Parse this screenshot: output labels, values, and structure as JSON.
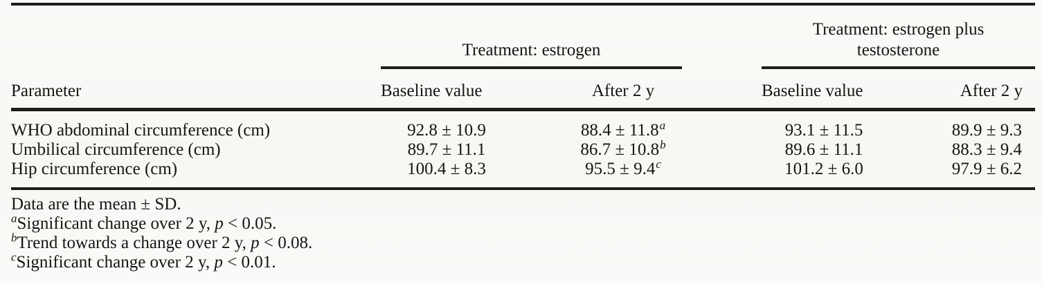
{
  "table": {
    "span_headers": {
      "estrogen": "Treatment: estrogen",
      "estrogen_testosterone": "Treatment: estrogen plus testosterone"
    },
    "columns": {
      "parameter": "Parameter",
      "estrogen_baseline": "Baseline value",
      "estrogen_after": "After 2 y",
      "combo_baseline": "Baseline value",
      "combo_after": "After 2 y"
    },
    "rows": [
      {
        "parameter": "WHO abdominal circumference (cm)",
        "estrogen": {
          "baseline": "92.8 ± 10.9",
          "after": "88.4 ± 11.8",
          "after_note": "a"
        },
        "estrogen_testosterone": {
          "baseline": "93.1 ± 11.5",
          "after": "89.9 ± 9.3",
          "after_note": ""
        }
      },
      {
        "parameter": "Umbilical circumference (cm)",
        "estrogen": {
          "baseline": "89.7 ± 11.1",
          "after": "86.7 ± 10.8",
          "after_note": "b"
        },
        "estrogen_testosterone": {
          "baseline": "89.6 ± 11.1",
          "after": "88.3 ± 9.4",
          "after_note": ""
        }
      },
      {
        "parameter": "Hip circumference (cm)",
        "estrogen": {
          "baseline": "100.4 ± 8.3",
          "after": "95.5 ± 9.4",
          "after_note": "c"
        },
        "estrogen_testosterone": {
          "baseline": "101.2 ± 6.0",
          "after": "97.9 ± 6.2",
          "after_note": ""
        }
      }
    ],
    "footnotes": [
      {
        "marker": "",
        "text": "Data are the mean ± SD.",
        "p_var": "",
        "condition": ""
      },
      {
        "marker": "a",
        "text": "Significant change over 2 y, ",
        "p_var": "p",
        "condition": " < 0.05."
      },
      {
        "marker": "b",
        "text": "Trend towards a change over 2 y, ",
        "p_var": "p",
        "condition": " < 0.08."
      },
      {
        "marker": "c",
        "text": "Significant change over 2 y, ",
        "p_var": "p",
        "condition": " < 0.01."
      }
    ],
    "colors": {
      "rule": "#1e1c1a",
      "text": "#171513",
      "paper": "#f9f9f6"
    }
  }
}
